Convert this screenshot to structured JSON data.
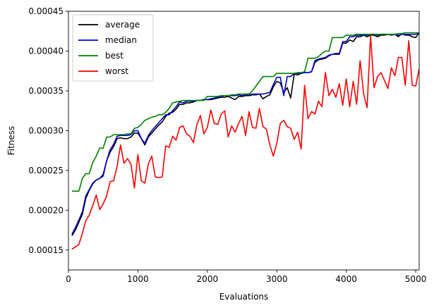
{
  "chart_data": {
    "type": "line",
    "xlabel": "Evaluations",
    "ylabel": "Fitness",
    "xlim": [
      0,
      5050
    ],
    "ylim": [
      0.000125,
      0.00045
    ],
    "x_ticks": [
      0,
      1000,
      2000,
      3000,
      4000,
      5000
    ],
    "x_tick_labels": [
      "0",
      "1000",
      "2000",
      "3000",
      "4000",
      "5000"
    ],
    "y_ticks": [
      0.00015,
      0.0002,
      0.00025,
      0.0003,
      0.00035,
      0.0004,
      0.00045
    ],
    "y_tick_labels": [
      "0.00015",
      "0.00020",
      "0.00025",
      "0.00030",
      "0.00035",
      "0.00040",
      "0.00045"
    ],
    "grid": false,
    "legend_position": "top-left",
    "x": [
      50,
      100,
      150,
      200,
      250,
      300,
      350,
      400,
      450,
      500,
      550,
      600,
      650,
      700,
      750,
      800,
      850,
      900,
      950,
      1000,
      1050,
      1100,
      1150,
      1200,
      1250,
      1300,
      1350,
      1400,
      1450,
      1500,
      1550,
      1600,
      1650,
      1700,
      1750,
      1800,
      1850,
      1900,
      1950,
      2000,
      2050,
      2100,
      2150,
      2200,
      2250,
      2300,
      2350,
      2400,
      2450,
      2500,
      2550,
      2600,
      2650,
      2700,
      2750,
      2800,
      2850,
      2900,
      2950,
      3000,
      3050,
      3100,
      3150,
      3200,
      3250,
      3300,
      3350,
      3400,
      3450,
      3500,
      3550,
      3600,
      3650,
      3700,
      3750,
      3800,
      3850,
      3900,
      3950,
      4000,
      4050,
      4100,
      4150,
      4200,
      4250,
      4300,
      4350,
      4400,
      4450,
      4500,
      4550,
      4600,
      4650,
      4700,
      4750,
      4800,
      4850,
      4900,
      4950,
      5000,
      5050
    ],
    "series": [
      {
        "name": "average",
        "color": "#000000",
        "values": [
          0.000168,
          0.000175,
          0.000185,
          0.000195,
          0.000215,
          0.000225,
          0.000233,
          0.000238,
          0.00024,
          0.000245,
          0.000262,
          0.000273,
          0.00028,
          0.00029,
          0.000291,
          0.00029,
          0.00029,
          0.000292,
          0.000297,
          0.000297,
          0.00029,
          0.000282,
          0.000292,
          0.000297,
          0.000302,
          0.000307,
          0.000311,
          0.000318,
          0.000322,
          0.000323,
          0.000327,
          0.000333,
          0.000333,
          0.000335,
          0.000335,
          0.000336,
          0.000338,
          0.000338,
          0.000339,
          0.000339,
          0.000339,
          0.00034,
          0.000341,
          0.000342,
          0.000342,
          0.000343,
          0.000341,
          0.000339,
          0.000343,
          0.000343,
          0.000344,
          0.000344,
          0.000345,
          0.000345,
          0.000346,
          0.00034,
          0.000343,
          0.000345,
          0.000355,
          0.000362,
          0.00036,
          0.000348,
          0.000354,
          0.000341,
          0.000371,
          0.00037,
          0.000372,
          0.000373,
          0.000373,
          0.000374,
          0.000386,
          0.000389,
          0.00039,
          0.000391,
          0.000394,
          0.000396,
          0.000396,
          0.000396,
          0.00041,
          0.00041,
          0.000414,
          0.000412,
          0.000418,
          0.000418,
          0.00042,
          0.000418,
          0.00042,
          0.00042,
          0.000418,
          0.00042,
          0.00042,
          0.000421,
          0.00042,
          0.000421,
          0.000418,
          0.000422,
          0.00042,
          0.00042,
          0.000418,
          0.000417,
          0.000423
        ]
      },
      {
        "name": "median",
        "color": "#0000cc",
        "values": [
          0.00017,
          0.000178,
          0.000188,
          0.000198,
          0.000218,
          0.000226,
          0.000234,
          0.000238,
          0.00024,
          0.000243,
          0.000262,
          0.000276,
          0.000283,
          0.000293,
          0.000294,
          0.000294,
          0.000294,
          0.000295,
          0.0003,
          0.0003,
          0.00029,
          0.000284,
          0.000294,
          0.0003,
          0.000305,
          0.00031,
          0.000315,
          0.00032,
          0.00032,
          0.000325,
          0.00033,
          0.000336,
          0.000335,
          0.000337,
          0.000337,
          0.000337,
          0.000338,
          0.000338,
          0.000339,
          0.000339,
          0.00034,
          0.000341,
          0.000342,
          0.000343,
          0.000344,
          0.000344,
          0.000344,
          0.000344,
          0.000345,
          0.000344,
          0.000345,
          0.000345,
          0.000346,
          0.000346,
          0.000346,
          0.000346,
          0.000347,
          0.000348,
          0.000358,
          0.000367,
          0.000367,
          0.000344,
          0.000368,
          0.000368,
          0.000372,
          0.000372,
          0.000372,
          0.000373,
          0.000373,
          0.000374,
          0.000388,
          0.00039,
          0.000391,
          0.000392,
          0.000395,
          0.000396,
          0.000397,
          0.000397,
          0.000412,
          0.000412,
          0.000418,
          0.000418,
          0.00042,
          0.00042,
          0.00042,
          0.00042,
          0.000421,
          0.000421,
          0.00042,
          0.000421,
          0.000421,
          0.000421,
          0.00042,
          0.000421,
          0.00042,
          0.000421,
          0.000421,
          0.000421,
          0.000421,
          0.000421,
          0.000423
        ]
      },
      {
        "name": "best",
        "color": "#008000",
        "values": [
          0.000224,
          0.000224,
          0.000224,
          0.00024,
          0.000246,
          0.000246,
          0.00026,
          0.000268,
          0.000278,
          0.000278,
          0.000292,
          0.000292,
          0.000295,
          0.000295,
          0.000295,
          0.000295,
          0.000296,
          0.000296,
          0.000303,
          0.000304,
          0.000308,
          0.000313,
          0.000315,
          0.000317,
          0.000318,
          0.00032,
          0.00032,
          0.000323,
          0.000328,
          0.000335,
          0.000336,
          0.000337,
          0.000338,
          0.000338,
          0.000338,
          0.000338,
          0.000338,
          0.000338,
          0.000338,
          0.000343,
          0.000343,
          0.000343,
          0.000343,
          0.000344,
          0.000344,
          0.000344,
          0.000345,
          0.000345,
          0.000346,
          0.000346,
          0.000346,
          0.000346,
          0.00035,
          0.000356,
          0.000362,
          0.000368,
          0.000368,
          0.000368,
          0.000368,
          0.000372,
          0.000372,
          0.000372,
          0.000372,
          0.000372,
          0.000372,
          0.000373,
          0.000373,
          0.000374,
          0.000391,
          0.000391,
          0.000391,
          0.000393,
          0.000397,
          0.0004,
          0.0004,
          0.000417,
          0.000417,
          0.000417,
          0.000417,
          0.00042,
          0.00042,
          0.00042,
          0.000421,
          0.000421,
          0.000421,
          0.000421,
          0.000421,
          0.000421,
          0.000421,
          0.000421,
          0.000421,
          0.000421,
          0.000421,
          0.000421,
          0.000422,
          0.000422,
          0.000423,
          0.000423,
          0.000423,
          0.000423,
          0.000423
        ]
      },
      {
        "name": "worst",
        "color": "#ff0000",
        "values": [
          0.000151,
          0.000154,
          0.000157,
          0.000171,
          0.000187,
          0.000194,
          0.000206,
          0.000219,
          0.000201,
          0.000208,
          0.000218,
          0.000236,
          0.000237,
          0.000255,
          0.000282,
          0.000259,
          0.000265,
          0.000258,
          0.000228,
          0.00027,
          0.000237,
          0.000234,
          0.000258,
          0.000268,
          0.000242,
          0.000241,
          0.000242,
          0.000281,
          0.000279,
          0.000293,
          0.000288,
          0.000304,
          0.000306,
          0.000296,
          0.000293,
          0.000285,
          0.000308,
          0.000319,
          0.000296,
          0.000304,
          0.000326,
          0.000309,
          0.000308,
          0.000321,
          0.000325,
          0.000292,
          0.000306,
          0.000298,
          0.000309,
          0.000318,
          0.000294,
          0.000324,
          0.000304,
          0.000303,
          0.000328,
          0.000305,
          0.000302,
          0.000282,
          0.000268,
          0.000284,
          0.000309,
          0.000313,
          0.000305,
          0.000303,
          0.000289,
          0.000298,
          0.000277,
          0.000357,
          0.000315,
          0.000324,
          0.000321,
          0.000337,
          0.00033,
          0.000373,
          0.000344,
          0.000352,
          0.000342,
          0.000359,
          0.000332,
          0.000365,
          0.00033,
          0.000362,
          0.000333,
          0.000388,
          0.000346,
          0.000329,
          0.00042,
          0.000354,
          0.000368,
          0.000373,
          0.000363,
          0.000353,
          0.000379,
          0.000369,
          0.000392,
          0.000392,
          0.000357,
          0.000413,
          0.000357,
          0.000356,
          0.000378
        ]
      }
    ]
  }
}
